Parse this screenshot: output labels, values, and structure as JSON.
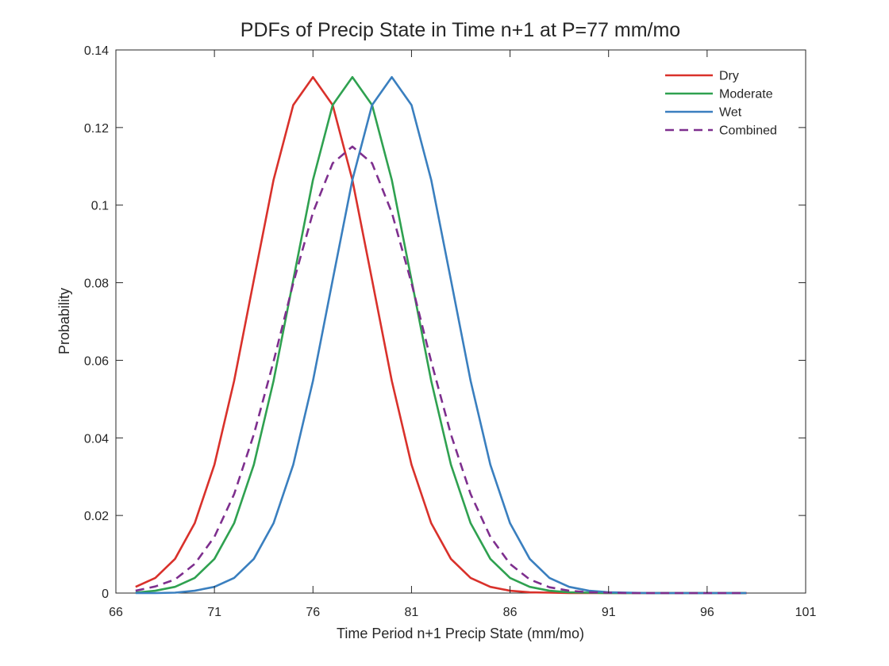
{
  "chart_data": {
    "type": "line",
    "title": "PDFs of Precip State in Time n+1 at P=77 mm/mo",
    "xlabel": "Time Period n+1 Precip State (mm/mo)",
    "ylabel": "Probability",
    "xlim": [
      66,
      101
    ],
    "ylim": [
      0,
      0.14
    ],
    "xticks": [
      66,
      71,
      76,
      81,
      86,
      91,
      96,
      101
    ],
    "yticks": [
      0,
      0.02,
      0.04,
      0.06,
      0.08,
      0.1,
      0.12,
      0.14
    ],
    "ytick_labels": [
      "0",
      "0.02",
      "0.04",
      "0.06",
      "0.08",
      "0.1",
      "0.12",
      "0.14"
    ],
    "grid": false,
    "legend_position": "top-right",
    "x": [
      67,
      68,
      69,
      70,
      71,
      72,
      73,
      74,
      75,
      76,
      77,
      78,
      79,
      80,
      81,
      82,
      83,
      84,
      85,
      86,
      87,
      88,
      89,
      90,
      91,
      92,
      93,
      94,
      95,
      96,
      97,
      98
    ],
    "series": [
      {
        "name": "Dry",
        "color": "#D9312B",
        "dash": "solid",
        "values": [
          0.0016,
          0.0039,
          0.0088,
          0.018,
          0.0331,
          0.0547,
          0.0807,
          0.1065,
          0.1258,
          0.133,
          0.1258,
          0.1065,
          0.0807,
          0.0547,
          0.0331,
          0.018,
          0.0088,
          0.0039,
          0.0016,
          0.0006,
          0.0002,
          0.0001,
          0,
          0,
          0,
          0,
          0,
          0,
          0,
          0,
          0,
          0
        ]
      },
      {
        "name": "Moderate",
        "color": "#2FA150",
        "dash": "solid",
        "values": [
          0.0001,
          0.0006,
          0.0016,
          0.0039,
          0.0088,
          0.018,
          0.0331,
          0.0547,
          0.0807,
          0.1065,
          0.1258,
          0.133,
          0.1258,
          0.1065,
          0.0807,
          0.0547,
          0.0331,
          0.018,
          0.0088,
          0.0039,
          0.0016,
          0.0006,
          0.0002,
          0.0001,
          0,
          0,
          0,
          0,
          0,
          0,
          0,
          0
        ]
      },
      {
        "name": "Wet",
        "color": "#3A7FBF",
        "dash": "solid",
        "values": [
          0,
          0,
          0.0001,
          0.0006,
          0.0016,
          0.0039,
          0.0088,
          0.018,
          0.0331,
          0.0547,
          0.0807,
          0.1065,
          0.1258,
          0.133,
          0.1258,
          0.1065,
          0.0807,
          0.0547,
          0.0331,
          0.018,
          0.0088,
          0.0039,
          0.0016,
          0.0006,
          0.0002,
          0.0001,
          0,
          0,
          0,
          0,
          0,
          0
        ]
      },
      {
        "name": "Combined",
        "color": "#7E2F8E",
        "dash": "dashed",
        "values": [
          0.0006,
          0.0017,
          0.0035,
          0.0075,
          0.0145,
          0.0255,
          0.0409,
          0.0597,
          0.0799,
          0.0981,
          0.1108,
          0.1151,
          0.1108,
          0.0981,
          0.0799,
          0.0597,
          0.0409,
          0.0255,
          0.0145,
          0.0075,
          0.0035,
          0.0015,
          0.0006,
          0.0002,
          0.0001,
          0,
          0,
          0,
          0,
          0,
          0,
          0
        ]
      }
    ]
  }
}
